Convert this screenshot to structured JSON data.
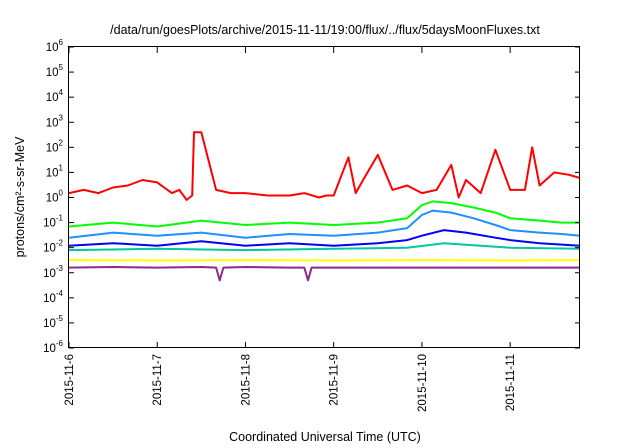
{
  "chart_data": {
    "type": "line",
    "title": "/data/run/goesPlots/archive/2015-11-11/19:00/flux/../flux/5daysMoonFluxes.txt",
    "xlabel": "Coordinated Universal Time (UTC)",
    "ylabel": "protons/cm²-s-sr-MeV",
    "yscale": "log",
    "ylim": [
      1e-06,
      1000000.0
    ],
    "xlim": [
      "2015-11-06T00:00",
      "2015-11-11T19:00"
    ],
    "x_ticks": [
      "2015-11-6",
      "2015-11-7",
      "2015-11-8",
      "2015-11-9",
      "2015-11-10",
      "2015-11-11"
    ],
    "y_ticks": [
      {
        "base": "10",
        "exp": "-6"
      },
      {
        "base": "10",
        "exp": "-5"
      },
      {
        "base": "10",
        "exp": "-4"
      },
      {
        "base": "10",
        "exp": "-3"
      },
      {
        "base": "10",
        "exp": "-2"
      },
      {
        "base": "10",
        "exp": "-1"
      },
      {
        "base": "10",
        "exp": "0"
      },
      {
        "base": "10",
        "exp": "1"
      },
      {
        "base": "10",
        "exp": "2"
      },
      {
        "base": "10",
        "exp": "3"
      },
      {
        "base": "10",
        "exp": "4"
      },
      {
        "base": "10",
        "exp": "5"
      },
      {
        "base": "10",
        "exp": "6"
      }
    ],
    "grid": false,
    "series": [
      {
        "color": "#ff0000",
        "x": [
          "2015-11-06T00:00",
          "2015-11-06T04:00",
          "2015-11-06T08:00",
          "2015-11-06T12:00",
          "2015-11-06T16:00",
          "2015-11-06T20:00",
          "2015-11-07T00:00",
          "2015-11-07T04:00",
          "2015-11-07T06:00",
          "2015-11-07T08:00",
          "2015-11-07T09:30",
          "2015-11-07T10:00",
          "2015-11-07T12:00",
          "2015-11-07T16:00",
          "2015-11-07T20:00",
          "2015-11-08T00:00",
          "2015-11-08T06:00",
          "2015-11-08T12:00",
          "2015-11-08T16:00",
          "2015-11-08T20:00",
          "2015-11-08T22:00",
          "2015-11-09T00:00",
          "2015-11-09T04:00",
          "2015-11-09T06:00",
          "2015-11-09T08:00",
          "2015-11-09T12:00",
          "2015-11-09T16:00",
          "2015-11-09T20:00",
          "2015-11-10T00:00",
          "2015-11-10T04:00",
          "2015-11-10T08:00",
          "2015-11-10T10:00",
          "2015-11-10T12:00",
          "2015-11-10T16:00",
          "2015-11-10T20:00",
          "2015-11-11T00:00",
          "2015-11-11T04:00",
          "2015-11-11T06:00",
          "2015-11-11T08:00",
          "2015-11-11T12:00",
          "2015-11-11T16:00",
          "2015-11-11T19:00"
        ],
        "values": [
          1.5,
          2,
          1.5,
          2.5,
          3,
          5,
          4,
          1.5,
          2,
          0.8,
          1.2,
          400,
          400,
          2,
          1.5,
          1.5,
          1.2,
          1.2,
          1.5,
          1,
          1.2,
          1.2,
          40,
          1.5,
          5,
          50,
          2,
          3,
          1.5,
          2,
          20,
          1,
          5,
          1.5,
          80,
          2,
          2,
          100,
          3,
          10,
          8,
          6
        ]
      },
      {
        "color": "#00ff00",
        "x": [
          "2015-11-06T00:00",
          "2015-11-06T12:00",
          "2015-11-07T00:00",
          "2015-11-07T12:00",
          "2015-11-08T00:00",
          "2015-11-08T12:00",
          "2015-11-09T00:00",
          "2015-11-09T12:00",
          "2015-11-09T20:00",
          "2015-11-10T00:00",
          "2015-11-10T03:00",
          "2015-11-10T08:00",
          "2015-11-10T14:00",
          "2015-11-10T20:00",
          "2015-11-11T00:00",
          "2015-11-11T08:00",
          "2015-11-11T14:00",
          "2015-11-11T19:00"
        ],
        "values": [
          0.07,
          0.1,
          0.07,
          0.12,
          0.08,
          0.1,
          0.08,
          0.1,
          0.15,
          0.5,
          0.7,
          0.6,
          0.4,
          0.25,
          0.15,
          0.12,
          0.1,
          0.1
        ]
      },
      {
        "color": "#1e90ff",
        "x": [
          "2015-11-06T00:00",
          "2015-11-06T12:00",
          "2015-11-07T00:00",
          "2015-11-07T12:00",
          "2015-11-08T00:00",
          "2015-11-08T12:00",
          "2015-11-09T00:00",
          "2015-11-09T12:00",
          "2015-11-09T20:00",
          "2015-11-10T00:00",
          "2015-11-10T03:00",
          "2015-11-10T08:00",
          "2015-11-10T14:00",
          "2015-11-10T20:00",
          "2015-11-11T00:00",
          "2015-11-11T08:00",
          "2015-11-11T14:00",
          "2015-11-11T19:00"
        ],
        "values": [
          0.025,
          0.04,
          0.03,
          0.04,
          0.025,
          0.035,
          0.03,
          0.04,
          0.06,
          0.2,
          0.3,
          0.25,
          0.15,
          0.08,
          0.05,
          0.04,
          0.035,
          0.03
        ]
      },
      {
        "color": "#0000ff",
        "x": [
          "2015-11-06T00:00",
          "2015-11-06T12:00",
          "2015-11-07T00:00",
          "2015-11-07T12:00",
          "2015-11-08T00:00",
          "2015-11-08T12:00",
          "2015-11-09T00:00",
          "2015-11-09T12:00",
          "2015-11-09T20:00",
          "2015-11-10T00:00",
          "2015-11-10T06:00",
          "2015-11-10T12:00",
          "2015-11-10T20:00",
          "2015-11-11T00:00",
          "2015-11-11T08:00",
          "2015-11-11T19:00"
        ],
        "values": [
          0.012,
          0.015,
          0.012,
          0.018,
          0.012,
          0.015,
          0.012,
          0.015,
          0.02,
          0.03,
          0.05,
          0.04,
          0.025,
          0.02,
          0.015,
          0.012
        ]
      },
      {
        "color": "#00c8a0",
        "x": [
          "2015-11-06T00:00",
          "2015-11-07T00:00",
          "2015-11-08T00:00",
          "2015-11-09T00:00",
          "2015-11-09T20:00",
          "2015-11-10T06:00",
          "2015-11-10T16:00",
          "2015-11-11T00:00",
          "2015-11-11T19:00"
        ],
        "values": [
          0.008,
          0.009,
          0.008,
          0.009,
          0.01,
          0.015,
          0.012,
          0.01,
          0.009
        ]
      },
      {
        "color": "#ffff00",
        "x": [
          "2015-11-06T00:00",
          "2015-11-07T00:00",
          "2015-11-08T00:00",
          "2015-11-09T00:00",
          "2015-11-10T00:00",
          "2015-11-11T00:00",
          "2015-11-11T19:00"
        ],
        "values": [
          0.0032,
          0.0031,
          0.0032,
          0.0031,
          0.0032,
          0.0031,
          0.0032
        ]
      },
      {
        "color": "#8b2a8b",
        "x": [
          "2015-11-06T00:00",
          "2015-11-06T12:00",
          "2015-11-07T00:00",
          "2015-11-07T12:00",
          "2015-11-07T16:00",
          "2015-11-07T17:00",
          "2015-11-07T18:00",
          "2015-11-08T00:00",
          "2015-11-08T12:00",
          "2015-11-08T16:00",
          "2015-11-08T17:00",
          "2015-11-08T18:00",
          "2015-11-09T00:00",
          "2015-11-10T00:00",
          "2015-11-11T00:00",
          "2015-11-11T19:00"
        ],
        "values": [
          0.0016,
          0.0017,
          0.0016,
          0.0017,
          0.0016,
          0.0005,
          0.0016,
          0.0017,
          0.0016,
          0.0016,
          0.0005,
          0.0016,
          0.0016,
          0.0016,
          0.0016,
          0.0016
        ]
      }
    ]
  }
}
